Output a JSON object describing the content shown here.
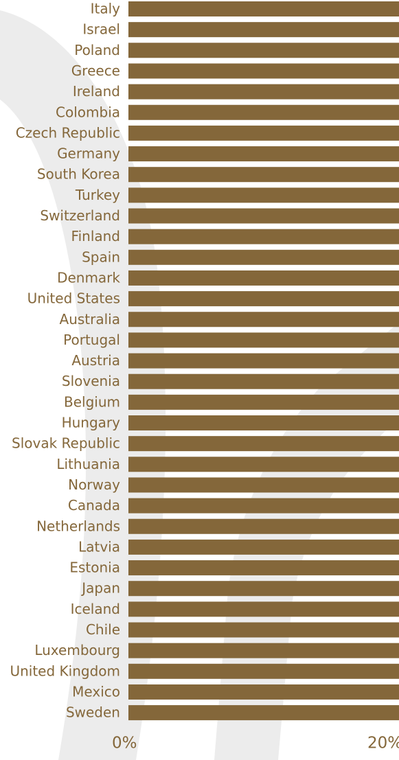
{
  "chart_data": {
    "type": "bar",
    "orientation": "horizontal",
    "categories": [
      "Italy",
      "Israel",
      "Poland",
      "Greece",
      "Ireland",
      "Colombia",
      "Czech Republic",
      "Germany",
      "South Korea",
      "Turkey",
      "Switzerland",
      "Finland",
      "Spain",
      "Denmark",
      "United States",
      "Australia",
      "Portugal",
      "Austria",
      "Slovenia",
      "Belgium",
      "Hungary",
      "Slovak Republic",
      "Lithuania",
      "Norway",
      "Canada",
      "Netherlands",
      "Latvia",
      "Estonia",
      "Japan",
      "Iceland",
      "Chile",
      "Luxembourg",
      "United Kingdom",
      "Mexico",
      "Sweden"
    ],
    "values": [
      20,
      20,
      20,
      20,
      20,
      20,
      20,
      20,
      20,
      20,
      20,
      20,
      20,
      20,
      20,
      20,
      20,
      20,
      20,
      20,
      20,
      20,
      20,
      20,
      20,
      20,
      20,
      20,
      20,
      20,
      20,
      20,
      20,
      20,
      20
    ],
    "x_ticks": [
      "0%",
      "20%"
    ],
    "xlim": [
      0,
      20
    ],
    "bar_color": "#84673a",
    "label_color": "#84673a",
    "watermark_color": "#ececec",
    "title": "",
    "xlabel": "",
    "ylabel": ""
  }
}
